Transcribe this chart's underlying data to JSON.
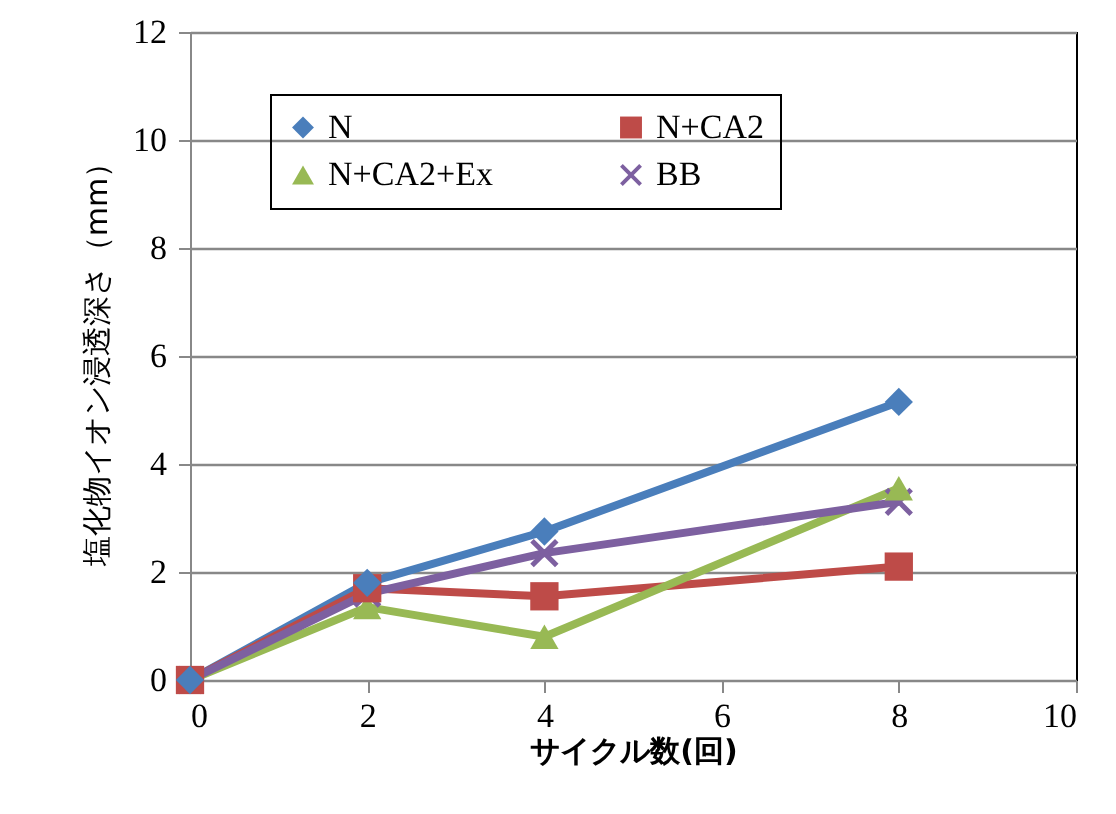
{
  "chart_data": {
    "type": "line",
    "xlabel": "サイクル数(回)",
    "ylabel": "塩化物イオン浸透深さ（mm）",
    "x": [
      0,
      2,
      4,
      8
    ],
    "series": [
      {
        "name": "N",
        "color": "#4a7ebb",
        "marker": "diamond",
        "values": [
          0,
          1.8,
          2.75,
          5.15
        ]
      },
      {
        "name": "N+CA2",
        "color": "#be4b48",
        "marker": "square",
        "values": [
          0,
          1.7,
          1.55,
          2.1
        ]
      },
      {
        "name": "N+CA2+Ex",
        "color": "#98b954",
        "marker": "triangle",
        "values": [
          0,
          1.35,
          0.8,
          3.55
        ]
      },
      {
        "name": "BB",
        "color": "#7d60a0",
        "marker": "cross",
        "values": [
          0,
          1.6,
          2.35,
          3.3
        ]
      }
    ],
    "xlim": [
      0,
      10
    ],
    "xticks": [
      0,
      2,
      4,
      6,
      8,
      10
    ],
    "ylim": [
      0,
      12
    ],
    "yticks": [
      0,
      2,
      4,
      6,
      8,
      10,
      12
    ],
    "grid": "y",
    "legend": "top"
  }
}
